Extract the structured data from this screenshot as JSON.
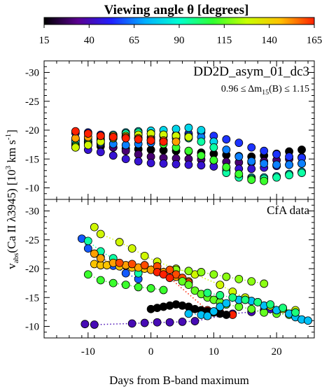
{
  "colorbar": {
    "title": "Viewing angle θ   [degrees]",
    "ticks": [
      15,
      40,
      65,
      90,
      115,
      140,
      165
    ],
    "range": [
      15,
      165
    ],
    "stops": [
      "#000000",
      "#5a0090",
      "#2020ff",
      "#00b0ff",
      "#00ffd0",
      "#30ff30",
      "#c8ff00",
      "#ffc000",
      "#ff2000"
    ]
  },
  "axes": {
    "xlabel": "Days from B-band maximum",
    "ylabel_main": "v",
    "ylabel_sub": "abs",
    "ylabel_rest": "(Ca II λ3945)   [10",
    "ylabel_exp": "3",
    "ylabel_unit": " km s",
    "ylabel_unit_exp": "-1",
    "ylabel_close": "]",
    "xlim": [
      -17,
      26
    ],
    "ylim": [
      -32,
      -8
    ],
    "xticks": [
      -10,
      0,
      10,
      20
    ],
    "yticks": [
      -30,
      -25,
      -20,
      -15,
      -10
    ]
  },
  "panels": {
    "top": {
      "model_name": "DD2D_asym_01_dc3",
      "range_label_left": "0.96 ≤ Δm",
      "range_label_sub": "15",
      "range_label_right": "(B) ≤ 1.15"
    },
    "bottom": {
      "label": "CfA data"
    }
  },
  "chart_data": [
    {
      "type": "scatter",
      "panel": "top",
      "title": "DD2D_asym_01_dc3",
      "note": "color = viewing angle θ (degrees)",
      "xlim": [
        -17,
        26
      ],
      "ylim": [
        -32,
        -8
      ],
      "series": [
        {
          "theta": 15,
          "x": [
            -12,
            -10,
            -8,
            -6,
            -4,
            -2,
            0,
            2,
            4,
            6,
            8,
            10,
            12,
            14,
            16,
            18,
            20,
            22,
            24
          ],
          "y": [
            -17.6,
            -17.4,
            -17.2,
            -17.0,
            -16.8,
            -16.7,
            -16.6,
            -16.5,
            -16.4,
            -16.3,
            -16.1,
            -15.9,
            -15.7,
            -15.5,
            -15.4,
            -15.6,
            -15.9,
            -16.3,
            -16.6
          ]
        },
        {
          "theta": 30,
          "x": [
            -12,
            -10,
            -8,
            -6,
            -4,
            -2,
            0,
            2,
            4,
            6,
            8,
            10,
            12,
            14,
            16,
            18,
            20,
            22,
            24
          ],
          "y": [
            -18.4,
            -18.0,
            -17.6,
            -17.0,
            -16.4,
            -15.8,
            -15.4,
            -15.2,
            -15.1,
            -15.0,
            -14.9,
            -14.7,
            -14.5,
            -14.4,
            -14.4,
            -14.6,
            -14.8,
            -15.0,
            -15.3
          ]
        },
        {
          "theta": 45,
          "x": [
            -12,
            -10,
            -8,
            -6,
            -4,
            -2,
            0,
            2,
            4,
            6,
            8,
            10,
            12,
            14,
            16,
            18,
            20,
            22,
            24
          ],
          "y": [
            -17.0,
            -16.6,
            -16.2,
            -15.6,
            -15.0,
            -14.6,
            -14.3,
            -14.2,
            -14.1,
            -14.0,
            -13.9,
            -13.7,
            -13.5,
            -13.3,
            -13.3,
            -13.5,
            -13.8,
            -14.0,
            -14.2
          ]
        },
        {
          "theta": 55,
          "x": [
            -12,
            -10,
            -8,
            -6,
            -4,
            -2,
            0,
            2,
            4,
            6,
            8,
            10,
            12,
            14,
            16,
            18,
            20,
            22,
            24
          ],
          "y": [
            -19.5,
            -19.6,
            -19.2,
            -18.9,
            -18.7,
            -18.6,
            -18.8,
            -19.0,
            -19.2,
            -19.4,
            -19.6,
            -19.0,
            -18.4,
            -17.8,
            -17.0,
            -16.4,
            -15.8,
            -15.4,
            -15.2
          ]
        },
        {
          "theta": 65,
          "x": [
            -12,
            -10,
            -8,
            -6,
            -4,
            -2,
            0,
            2,
            4,
            6,
            8,
            10,
            12,
            14,
            16,
            18,
            20,
            22,
            24
          ],
          "y": [
            -18.2,
            -18.0,
            -17.8,
            -17.6,
            -17.4,
            -17.6,
            -17.8,
            -18.2,
            -18.6,
            -19.0,
            -18.8,
            -18.0,
            -16.6,
            -15.4,
            -14.6,
            -14.2,
            -14.0,
            -14.0,
            -14.2
          ]
        },
        {
          "theta": 80,
          "x": [
            -12,
            -10,
            -8,
            -6,
            -4,
            -2,
            0,
            2,
            4,
            6,
            8,
            10,
            12,
            14,
            16,
            18,
            20,
            22,
            24
          ],
          "y": [
            -18.0,
            -18.4,
            -18.8,
            -19.2,
            -19.6,
            -19.8,
            -19.9,
            -20.0,
            -20.2,
            -20.4,
            -20.0,
            -18.0,
            -13.0,
            -12.0,
            -11.8,
            -11.8,
            -12.0,
            -12.4,
            -12.8
          ]
        },
        {
          "theta": 95,
          "x": [
            -12,
            -10,
            -8,
            -6,
            -4,
            -2,
            0,
            2,
            4,
            6,
            8,
            10,
            12,
            14,
            16,
            18,
            20,
            22,
            24
          ],
          "y": [
            -17.4,
            -17.8,
            -18.4,
            -19.0,
            -19.4,
            -19.6,
            -19.4,
            -19.2,
            -19.0,
            -18.6,
            -18.0,
            -17.0,
            -12.6,
            -11.8,
            -11.6,
            -11.6,
            -11.8,
            -12.2,
            -12.6
          ]
        },
        {
          "theta": 110,
          "x": [
            -12,
            -10,
            -8,
            -6,
            -4,
            -2,
            0,
            2,
            4,
            6,
            8,
            10,
            12,
            14,
            16,
            18
          ],
          "y": [
            -17.2,
            -17.6,
            -18.2,
            -18.6,
            -18.8,
            -18.6,
            -18.2,
            -17.6,
            -17.0,
            -16.4,
            -15.6,
            -14.8,
            -13.6,
            -12.4,
            -11.4,
            -11.2
          ]
        },
        {
          "theta": 130,
          "x": [
            -12,
            -10,
            -8,
            -6,
            -4,
            -2,
            0,
            2,
            4,
            6
          ],
          "y": [
            -17.0,
            -17.4,
            -18.0,
            -18.6,
            -19.0,
            -19.2,
            -19.4,
            -19.2,
            -19.0,
            -18.8
          ]
        },
        {
          "theta": 150,
          "x": [
            -12,
            -10,
            -8,
            -6,
            -4,
            -2,
            0,
            2,
            4
          ],
          "y": [
            -18.6,
            -18.8,
            -19.0,
            -19.0,
            -18.8,
            -18.6,
            -18.4,
            -18.2,
            -18.0
          ]
        },
        {
          "theta": 165,
          "x": [
            -12,
            -10,
            -8,
            -6,
            -4,
            -2,
            0,
            2
          ],
          "y": [
            -19.8,
            -19.4,
            -19.0,
            -18.8,
            -18.6,
            -18.4,
            -18.2,
            -18.0
          ]
        }
      ]
    },
    {
      "type": "scatter",
      "panel": "bottom",
      "title": "CfA data",
      "note": "color = viewing angle θ (degrees); dotted lines connect epochs of the same object",
      "xlim": [
        -17,
        26
      ],
      "ylim": [
        -32,
        -8
      ],
      "series": [
        {
          "theta": 40,
          "x": [
            -10.5,
            -9,
            -3,
            -1,
            1,
            3,
            5,
            7,
            13,
            16,
            18,
            19
          ],
          "y": [
            -10.4,
            -10.3,
            -10.5,
            -10.6,
            -10.7,
            -10.7,
            -10.8,
            -10.9,
            -12.2,
            -12.5,
            -12.8,
            -13.0
          ]
        },
        {
          "theta": 60,
          "x": [
            -11,
            -10,
            -8,
            -6,
            -4,
            -2
          ],
          "y": [
            -25.2,
            -23.5,
            -22.0,
            -20.5,
            -19.2,
            -18.2
          ]
        },
        {
          "theta": 95,
          "x": [
            -10,
            -8,
            -6,
            -4,
            -2
          ],
          "y": [
            -24.8,
            -23.0,
            -21.8,
            -20.5,
            -19.2
          ]
        },
        {
          "theta": 110,
          "x": [
            -10,
            -8,
            -6,
            -4,
            -2,
            0,
            2
          ],
          "y": [
            -19.0,
            -18.0,
            -17.5,
            -17.2,
            -16.8,
            -16.6,
            -16.3
          ]
        },
        {
          "theta": 130,
          "x": [
            -9,
            -8,
            -5,
            -3,
            -1,
            1,
            4,
            7,
            11,
            13,
            15,
            17,
            19,
            21,
            23
          ],
          "y": [
            -27.2,
            -26.0,
            -24.6,
            -23.5,
            -22.2,
            -21.2,
            -20.0,
            -19.0,
            -17.2,
            -16.0,
            -15.0,
            -14.2,
            -13.5,
            -13.0,
            -12.8
          ]
        },
        {
          "theta": 120,
          "x": [
            4,
            6,
            8,
            10,
            12,
            14,
            16,
            18
          ],
          "y": [
            -19.8,
            -19.6,
            -19.4,
            -19.0,
            -18.6,
            -18.2,
            -17.8,
            -17.4
          ]
        },
        {
          "theta": 145,
          "x": [
            -9,
            -8,
            -7,
            -5,
            -3,
            -1,
            1
          ],
          "y": [
            -20.8,
            -20.6,
            -20.6,
            -20.4,
            -20.2,
            -20.0,
            -19.8
          ]
        },
        {
          "theta": 150,
          "x": [
            -9,
            -8,
            -6,
            -4,
            -2,
            0,
            2,
            4,
            6
          ],
          "y": [
            -22.6,
            -21.8,
            -21.0,
            -20.6,
            -20.2,
            -19.8,
            -19.4,
            -18.6,
            -17.8
          ]
        },
        {
          "theta": 160,
          "x": [
            -5,
            -3,
            -1,
            1,
            3,
            4,
            5,
            6
          ],
          "y": [
            -21.0,
            -20.8,
            -20.6,
            -20.4,
            -19.8,
            -19.0,
            -18.4,
            -17.6
          ]
        },
        {
          "theta": 165,
          "x": [
            1,
            2,
            3,
            9,
            11,
            13
          ],
          "y": [
            -19.4,
            -19.0,
            -18.4,
            -12.8,
            -12.4,
            -12.0
          ]
        },
        {
          "theta": 115,
          "x": [
            5,
            6,
            7,
            8,
            9,
            10,
            11,
            12,
            14,
            16,
            18,
            20,
            22
          ],
          "y": [
            -17.8,
            -17.2,
            -16.2,
            -15.6,
            -15.0,
            -14.6,
            -14.2,
            -13.8,
            -13.4,
            -13.0,
            -12.4,
            -12.2,
            -12.0
          ]
        },
        {
          "theta": 15,
          "x": [
            0,
            1,
            2,
            3,
            4,
            5,
            6,
            7,
            8,
            9,
            10,
            11,
            12
          ],
          "y": [
            -13.0,
            -13.2,
            -13.4,
            -13.6,
            -13.8,
            -13.6,
            -13.4,
            -13.0,
            -12.8,
            -12.6,
            -12.4,
            -12.2,
            -12.0
          ]
        },
        {
          "theta": 75,
          "x": [
            6,
            8,
            9,
            10,
            11,
            12,
            14,
            16,
            18,
            20,
            22,
            23,
            24,
            25
          ],
          "y": [
            -12.2,
            -12.0,
            -11.8,
            -12.6,
            -13.4,
            -14.0,
            -14.6,
            -14.4,
            -13.6,
            -12.8,
            -12.2,
            -11.6,
            -11.2,
            -11.0
          ]
        },
        {
          "theta": 100,
          "x": [
            9,
            11,
            13,
            15,
            17,
            19,
            21,
            23
          ],
          "y": [
            -15.8,
            -15.4,
            -15.0,
            -14.6,
            -14.2,
            -13.8,
            -13.2,
            -12.4
          ]
        }
      ]
    }
  ]
}
